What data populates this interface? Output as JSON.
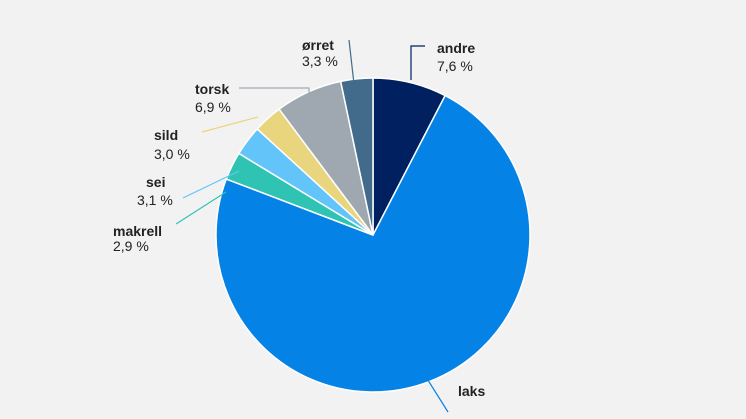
{
  "chart_data": {
    "type": "pie",
    "categories": [
      "andre",
      "laks",
      "makrell",
      "sei",
      "sild",
      "torsk",
      "ørret"
    ],
    "values": [
      7.6,
      73.2,
      2.9,
      3.1,
      3.0,
      6.9,
      3.3
    ],
    "value_labels": [
      "7,6 %",
      "",
      "2,9 %",
      "3,1 %",
      "3,0 %",
      "6,9 %",
      "3,3 %"
    ],
    "colors": [
      "#002060",
      "#0582e6",
      "#2fc3b3",
      "#62c4f8",
      "#e8d57e",
      "#9fa8b1",
      "#426b8b"
    ],
    "leader_colors": [
      "#002060",
      "#0582e6",
      "#2fc3b3",
      "#62c4f8",
      "#e8d57e",
      "#9fa8b1",
      "#426b8b"
    ],
    "start_angle_deg": 0,
    "direction": "clockwise",
    "title": "",
    "legend": "none"
  }
}
